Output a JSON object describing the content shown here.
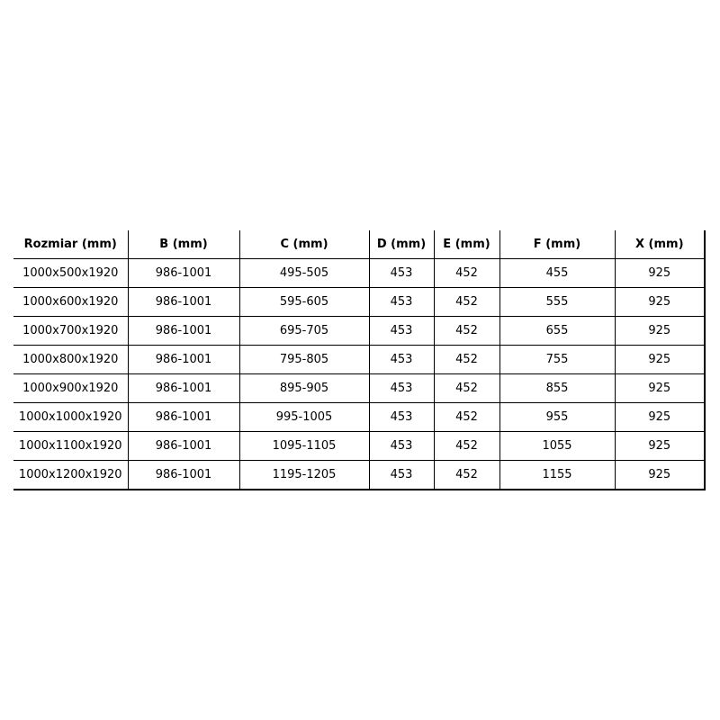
{
  "table": {
    "headers": [
      "Rozmiar (mm)",
      "B (mm)",
      "C (mm)",
      "D (mm)",
      "E (mm)",
      "F (mm)",
      "X (mm)"
    ],
    "rows": [
      [
        "1000x500x1920",
        "986-1001",
        "495-505",
        "453",
        "452",
        "455",
        "925"
      ],
      [
        "1000x600x1920",
        "986-1001",
        "595-605",
        "453",
        "452",
        "555",
        "925"
      ],
      [
        "1000x700x1920",
        "986-1001",
        "695-705",
        "453",
        "452",
        "655",
        "925"
      ],
      [
        "1000x800x1920",
        "986-1001",
        "795-805",
        "453",
        "452",
        "755",
        "925"
      ],
      [
        "1000x900x1920",
        "986-1001",
        "895-905",
        "453",
        "452",
        "855",
        "925"
      ],
      [
        "1000x1000x1920",
        "986-1001",
        "995-1005",
        "453",
        "452",
        "955",
        "925"
      ],
      [
        "1000x1100x1920",
        "986-1001",
        "1095-1105",
        "453",
        "452",
        "1055",
        "925"
      ],
      [
        "1000x1200x1920",
        "986-1001",
        "1195-1205",
        "453",
        "452",
        "1155",
        "925"
      ]
    ]
  }
}
